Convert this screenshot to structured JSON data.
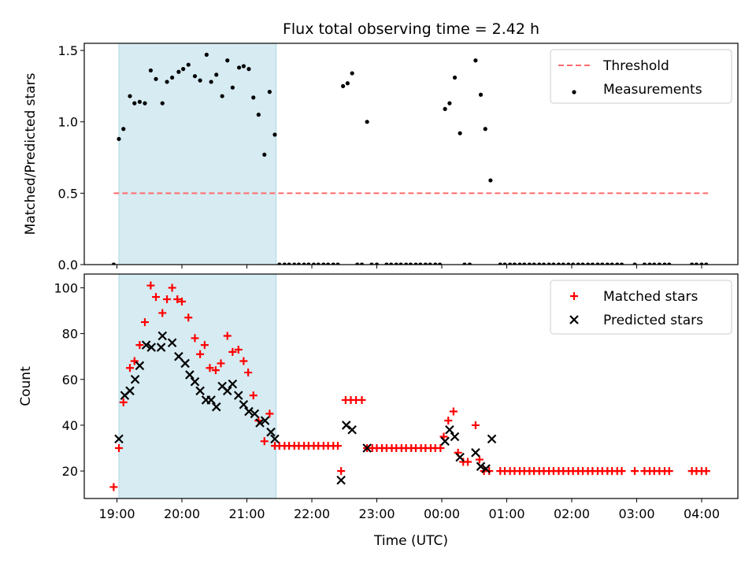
{
  "title": "Flux total observing time = 2.42 h",
  "chart_data": [
    {
      "type": "scatter",
      "ylabel": "Matched/Predicted stars",
      "xlim": [
        -0.5,
        9.4
      ],
      "ylim": [
        0,
        1.55
      ],
      "yticks": [
        0.0,
        0.5,
        1.0,
        1.5
      ],
      "yticklabels": [
        "0.0",
        "0.5",
        "1.0",
        "1.5"
      ],
      "shaded_span": [
        0.03,
        2.45
      ],
      "legend_position": "top-right",
      "threshold": {
        "name": "Threshold",
        "y": 0.5,
        "x": [
          -0.05,
          9.1
        ],
        "color": "#ff6b6b",
        "style": "dashed"
      },
      "series": [
        {
          "name": "Measurements",
          "marker": "dot",
          "color": "#000000",
          "points": [
            [
              -0.05,
              0.0
            ],
            [
              0.03,
              0.88
            ],
            [
              0.1,
              0.95
            ],
            [
              0.2,
              1.18
            ],
            [
              0.27,
              1.13
            ],
            [
              0.35,
              1.14
            ],
            [
              0.43,
              1.13
            ],
            [
              0.52,
              1.36
            ],
            [
              0.6,
              1.3
            ],
            [
              0.7,
              1.13
            ],
            [
              0.77,
              1.28
            ],
            [
              0.85,
              1.31
            ],
            [
              0.95,
              1.35
            ],
            [
              1.02,
              1.37
            ],
            [
              1.1,
              1.4
            ],
            [
              1.2,
              1.32
            ],
            [
              1.28,
              1.29
            ],
            [
              1.38,
              1.47
            ],
            [
              1.45,
              1.28
            ],
            [
              1.53,
              1.33
            ],
            [
              1.62,
              1.18
            ],
            [
              1.7,
              1.43
            ],
            [
              1.78,
              1.24
            ],
            [
              1.88,
              1.38
            ],
            [
              1.95,
              1.39
            ],
            [
              2.03,
              1.37
            ],
            [
              2.1,
              1.17
            ],
            [
              2.18,
              1.05
            ],
            [
              2.27,
              0.77
            ],
            [
              2.35,
              1.21
            ],
            [
              2.43,
              0.91
            ],
            [
              2.5,
              0.0
            ],
            [
              2.58,
              0.0
            ],
            [
              2.65,
              0.0
            ],
            [
              2.73,
              0.0
            ],
            [
              2.8,
              0.0
            ],
            [
              2.88,
              0.0
            ],
            [
              2.95,
              0.0
            ],
            [
              3.03,
              0.0
            ],
            [
              3.1,
              0.0
            ],
            [
              3.18,
              0.0
            ],
            [
              3.25,
              0.0
            ],
            [
              3.33,
              0.0
            ],
            [
              3.4,
              0.0
            ],
            [
              3.48,
              1.25
            ],
            [
              3.55,
              1.27
            ],
            [
              3.62,
              1.34
            ],
            [
              3.7,
              0.0
            ],
            [
              3.77,
              0.0
            ],
            [
              3.85,
              1.0
            ],
            [
              3.92,
              0.0
            ],
            [
              4.0,
              0.0
            ],
            [
              4.15,
              0.0
            ],
            [
              4.22,
              0.0
            ],
            [
              4.3,
              0.0
            ],
            [
              4.37,
              0.0
            ],
            [
              4.45,
              0.0
            ],
            [
              4.52,
              0.0
            ],
            [
              4.6,
              0.0
            ],
            [
              4.67,
              0.0
            ],
            [
              4.75,
              0.0
            ],
            [
              4.82,
              0.0
            ],
            [
              4.9,
              0.0
            ],
            [
              4.97,
              0.0
            ],
            [
              5.05,
              1.09
            ],
            [
              5.12,
              1.13
            ],
            [
              5.2,
              1.31
            ],
            [
              5.28,
              0.92
            ],
            [
              5.35,
              0.0
            ],
            [
              5.43,
              0.0
            ],
            [
              5.52,
              1.43
            ],
            [
              5.6,
              1.19
            ],
            [
              5.67,
              0.95
            ],
            [
              5.75,
              0.59
            ],
            [
              5.9,
              0.0
            ],
            [
              5.97,
              0.0
            ],
            [
              6.05,
              0.0
            ],
            [
              6.12,
              0.0
            ],
            [
              6.2,
              0.0
            ],
            [
              6.27,
              0.0
            ],
            [
              6.35,
              0.0
            ],
            [
              6.42,
              0.0
            ],
            [
              6.5,
              0.0
            ],
            [
              6.57,
              0.0
            ],
            [
              6.65,
              0.0
            ],
            [
              6.72,
              0.0
            ],
            [
              6.8,
              0.0
            ],
            [
              6.87,
              0.0
            ],
            [
              6.95,
              0.0
            ],
            [
              7.02,
              0.0
            ],
            [
              7.1,
              0.0
            ],
            [
              7.17,
              0.0
            ],
            [
              7.25,
              0.0
            ],
            [
              7.32,
              0.0
            ],
            [
              7.4,
              0.0
            ],
            [
              7.47,
              0.0
            ],
            [
              7.55,
              0.0
            ],
            [
              7.62,
              0.0
            ],
            [
              7.7,
              0.0
            ],
            [
              7.77,
              0.0
            ],
            [
              7.97,
              0.0
            ],
            [
              8.12,
              0.0
            ],
            [
              8.2,
              0.0
            ],
            [
              8.27,
              0.0
            ],
            [
              8.35,
              0.0
            ],
            [
              8.43,
              0.0
            ],
            [
              8.5,
              0.0
            ],
            [
              8.85,
              0.0
            ],
            [
              8.92,
              0.0
            ],
            [
              9.0,
              0.0
            ],
            [
              9.07,
              0.0
            ]
          ]
        }
      ]
    },
    {
      "type": "scatter",
      "xlabel": "Time (UTC)",
      "ylabel": "Count",
      "xlim": [
        -0.5,
        9.4
      ],
      "ylim": [
        8,
        106
      ],
      "yticks": [
        20,
        40,
        60,
        80,
        100
      ],
      "yticklabels": [
        "20",
        "40",
        "60",
        "80",
        "100"
      ],
      "xticks": [
        0,
        1,
        2,
        3,
        4,
        5,
        6,
        7,
        8,
        9
      ],
      "xticklabels": [
        "19:00",
        "20:00",
        "21:00",
        "22:00",
        "23:00",
        "00:00",
        "01:00",
        "02:00",
        "03:00",
        "04:00"
      ],
      "shaded_span": [
        0.03,
        2.45
      ],
      "legend_position": "top-right",
      "series": [
        {
          "name": "Matched stars",
          "marker": "plus",
          "color": "#ff0000",
          "points": [
            [
              -0.05,
              13
            ],
            [
              0.03,
              30
            ],
            [
              0.1,
              50
            ],
            [
              0.2,
              65
            ],
            [
              0.27,
              68
            ],
            [
              0.35,
              75
            ],
            [
              0.43,
              85
            ],
            [
              0.52,
              101
            ],
            [
              0.6,
              96
            ],
            [
              0.7,
              89
            ],
            [
              0.77,
              95
            ],
            [
              0.85,
              100
            ],
            [
              0.93,
              95
            ],
            [
              1.0,
              94
            ],
            [
              1.1,
              87
            ],
            [
              1.2,
              78
            ],
            [
              1.28,
              71
            ],
            [
              1.35,
              75
            ],
            [
              1.43,
              65
            ],
            [
              1.52,
              64
            ],
            [
              1.6,
              67
            ],
            [
              1.7,
              79
            ],
            [
              1.78,
              72
            ],
            [
              1.87,
              73
            ],
            [
              1.95,
              68
            ],
            [
              2.02,
              63
            ],
            [
              2.1,
              53
            ],
            [
              2.18,
              42
            ],
            [
              2.27,
              33
            ],
            [
              2.35,
              45
            ],
            [
              2.43,
              31
            ],
            [
              2.5,
              31
            ],
            [
              2.58,
              31
            ],
            [
              2.65,
              31
            ],
            [
              2.73,
              31
            ],
            [
              2.8,
              31
            ],
            [
              2.88,
              31
            ],
            [
              2.95,
              31
            ],
            [
              3.03,
              31
            ],
            [
              3.1,
              31
            ],
            [
              3.18,
              31
            ],
            [
              3.25,
              31
            ],
            [
              3.33,
              31
            ],
            [
              3.4,
              31
            ],
            [
              3.45,
              20
            ],
            [
              3.52,
              51
            ],
            [
              3.6,
              51
            ],
            [
              3.68,
              51
            ],
            [
              3.77,
              51
            ],
            [
              3.85,
              30
            ],
            [
              3.93,
              30
            ],
            [
              4.0,
              30
            ],
            [
              4.08,
              30
            ],
            [
              4.15,
              30
            ],
            [
              4.23,
              30
            ],
            [
              4.3,
              30
            ],
            [
              4.38,
              30
            ],
            [
              4.45,
              30
            ],
            [
              4.53,
              30
            ],
            [
              4.6,
              30
            ],
            [
              4.68,
              30
            ],
            [
              4.75,
              30
            ],
            [
              4.83,
              30
            ],
            [
              4.9,
              30
            ],
            [
              4.98,
              30
            ],
            [
              5.03,
              35
            ],
            [
              5.1,
              42
            ],
            [
              5.18,
              46
            ],
            [
              5.25,
              28
            ],
            [
              5.33,
              24
            ],
            [
              5.4,
              24
            ],
            [
              5.52,
              40
            ],
            [
              5.58,
              25
            ],
            [
              5.65,
              20
            ],
            [
              5.73,
              20
            ],
            [
              5.9,
              20
            ],
            [
              5.97,
              20
            ],
            [
              6.05,
              20
            ],
            [
              6.12,
              20
            ],
            [
              6.2,
              20
            ],
            [
              6.27,
              20
            ],
            [
              6.35,
              20
            ],
            [
              6.42,
              20
            ],
            [
              6.5,
              20
            ],
            [
              6.57,
              20
            ],
            [
              6.65,
              20
            ],
            [
              6.72,
              20
            ],
            [
              6.8,
              20
            ],
            [
              6.87,
              20
            ],
            [
              6.95,
              20
            ],
            [
              7.02,
              20
            ],
            [
              7.1,
              20
            ],
            [
              7.17,
              20
            ],
            [
              7.25,
              20
            ],
            [
              7.32,
              20
            ],
            [
              7.4,
              20
            ],
            [
              7.47,
              20
            ],
            [
              7.55,
              20
            ],
            [
              7.62,
              20
            ],
            [
              7.7,
              20
            ],
            [
              7.77,
              20
            ],
            [
              7.97,
              20
            ],
            [
              8.12,
              20
            ],
            [
              8.2,
              20
            ],
            [
              8.27,
              20
            ],
            [
              8.35,
              20
            ],
            [
              8.43,
              20
            ],
            [
              8.5,
              20
            ],
            [
              8.85,
              20
            ],
            [
              8.92,
              20
            ],
            [
              9.0,
              20
            ],
            [
              9.07,
              20
            ]
          ]
        },
        {
          "name": "Predicted stars",
          "marker": "x",
          "color": "#000000",
          "points": [
            [
              0.03,
              34
            ],
            [
              0.12,
              53
            ],
            [
              0.2,
              55
            ],
            [
              0.28,
              60
            ],
            [
              0.35,
              66
            ],
            [
              0.45,
              75
            ],
            [
              0.53,
              74
            ],
            [
              0.68,
              74
            ],
            [
              0.7,
              79
            ],
            [
              0.85,
              76
            ],
            [
              0.95,
              70
            ],
            [
              1.05,
              67
            ],
            [
              1.12,
              62
            ],
            [
              1.2,
              59
            ],
            [
              1.28,
              55
            ],
            [
              1.37,
              51
            ],
            [
              1.45,
              51
            ],
            [
              1.53,
              48
            ],
            [
              1.62,
              57
            ],
            [
              1.7,
              55
            ],
            [
              1.78,
              58
            ],
            [
              1.87,
              53
            ],
            [
              1.95,
              49
            ],
            [
              2.03,
              46
            ],
            [
              2.12,
              45
            ],
            [
              2.2,
              41
            ],
            [
              2.28,
              42
            ],
            [
              2.37,
              37
            ],
            [
              2.43,
              34
            ],
            [
              3.45,
              16
            ],
            [
              3.53,
              40
            ],
            [
              3.62,
              38
            ],
            [
              3.85,
              30
            ],
            [
              5.05,
              33
            ],
            [
              5.12,
              38
            ],
            [
              5.2,
              35
            ],
            [
              5.28,
              26
            ],
            [
              5.52,
              28
            ],
            [
              5.6,
              22
            ],
            [
              5.68,
              21
            ],
            [
              5.77,
              34
            ]
          ]
        }
      ]
    }
  ]
}
